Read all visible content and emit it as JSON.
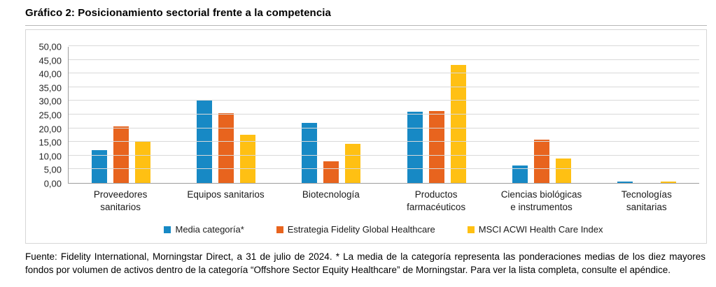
{
  "page": {
    "title": "Gráfico 2: Posicionamiento sectorial frente a la competencia",
    "footnote": "Fuente: Fidelity International, Morningstar Direct, a 31 de julio de 2024. * La media de la categoría representa las ponderaciones medias de los diez mayores fondos por volumen de activos dentro de la categoría “Offshore Sector Equity Healthcare” de Morningstar. Para ver la lista completa, consulte el apéndice."
  },
  "chart_data": {
    "type": "bar",
    "title": "Gráfico 2: Posicionamiento sectorial frente a la competencia",
    "categories": [
      "Proveedores sanitarios",
      "Equipos sanitarios",
      "Biotecnología",
      "Productos farmacéuticos",
      "Ciencias biológicas e instrumentos",
      "Tecnologías sanitarias"
    ],
    "series": [
      {
        "name": "Media categoría*",
        "color": "#1789C5",
        "values": [
          12.0,
          30.4,
          22.0,
          26.0,
          6.3,
          0.5
        ]
      },
      {
        "name": "Estrategia Fidelity Global Healthcare",
        "color": "#E8641E",
        "values": [
          20.7,
          25.5,
          7.9,
          26.3,
          15.7,
          0.0
        ]
      },
      {
        "name": "MSCI ACWI Health Care Index",
        "color": "#FFC013",
        "values": [
          15.3,
          17.5,
          14.4,
          43.2,
          8.9,
          0.4
        ]
      }
    ],
    "xlabel": "",
    "ylabel": "",
    "ylim": [
      0,
      50
    ],
    "ytick_step": 5,
    "ytick_decimal_separator": ",",
    "ytick_decimals": 2,
    "grid": true,
    "legend_position": "bottom"
  }
}
